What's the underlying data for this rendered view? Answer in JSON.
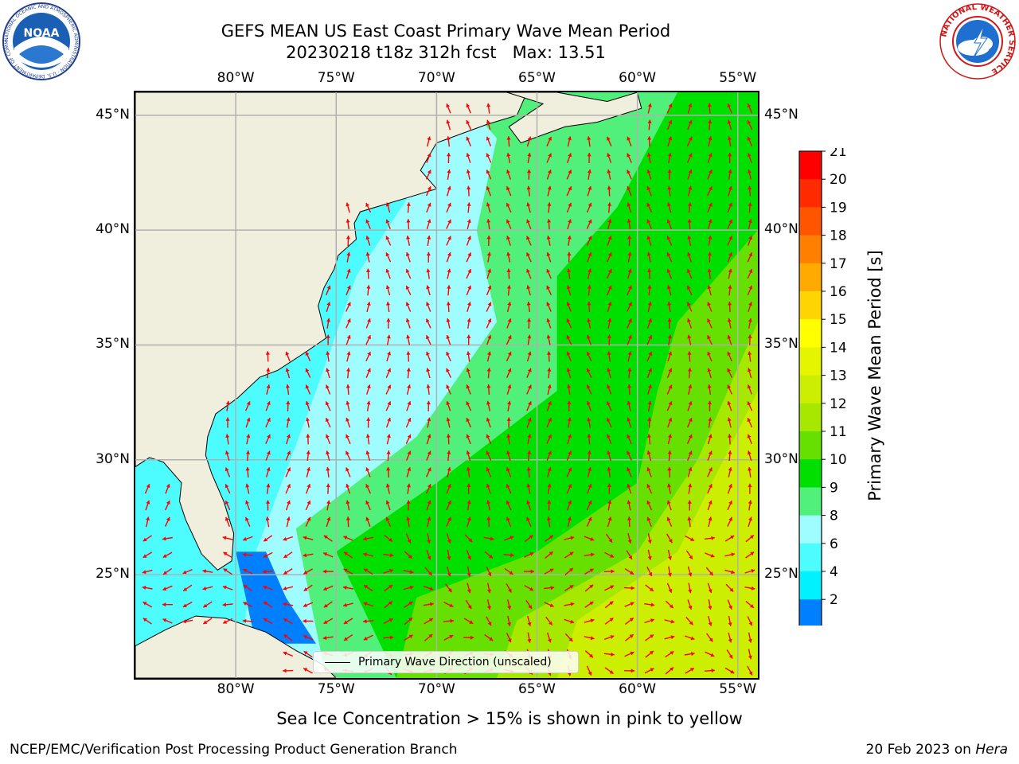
{
  "title": {
    "line1": "GEFS MEAN US East Coast Primary Wave Mean Period",
    "line2": "20230218 t18z 312h fcst   Max: 13.51"
  },
  "map": {
    "lon_range": [
      -85,
      -54
    ],
    "lat_range": [
      20.5,
      46
    ],
    "lon_ticks": [
      {
        "value": -80,
        "label": "80°W"
      },
      {
        "value": -75,
        "label": "75°W"
      },
      {
        "value": -70,
        "label": "70°W"
      },
      {
        "value": -65,
        "label": "65°W"
      },
      {
        "value": -60,
        "label": "60°W"
      },
      {
        "value": -55,
        "label": "55°W"
      }
    ],
    "lat_ticks": [
      {
        "value": 45,
        "label": "45°N"
      },
      {
        "value": 40,
        "label": "40°N"
      },
      {
        "value": 35,
        "label": "35°N"
      },
      {
        "value": 30,
        "label": "30°N"
      },
      {
        "value": 25,
        "label": "25°N"
      }
    ],
    "land_color": "#f0eedc",
    "gridline_color": "#b0b0b0",
    "arrow_color": "#ff0000",
    "legend_label": "Primary Wave Direction (unscaled)",
    "footnote": "Sea Ice Concentration > 15% is shown in pink to yellow"
  },
  "colorbar": {
    "label": "Primary Wave Mean Period [s]",
    "ticks": [
      "21",
      "20",
      "19",
      "18",
      "17",
      "16",
      "15",
      "14",
      "13",
      "12",
      "11",
      "10",
      "9",
      "8",
      "6",
      "4",
      "2"
    ],
    "colors": [
      "#ff0000",
      "#ff2a00",
      "#ff5500",
      "#ff8000",
      "#ffaa00",
      "#ffd500",
      "#ffff00",
      "#e5f500",
      "#ccee00",
      "#a6e800",
      "#66e000",
      "#00e000",
      "#50f07a",
      "#9ffcff",
      "#4dfcff",
      "#00f2ff",
      "#0080ff"
    ],
    "extend_color": "#0000ff"
  },
  "logos": {
    "noaa": "NOAA",
    "noaa_ring": "NATIONAL OCEANIC AND ATMOSPHERIC ADMINISTRATION · U.S. DEPARTMENT OF COMMERCE",
    "nws_ring": "NATIONAL WEATHER SERVICE"
  },
  "credit": "NCEP/EMC/Verification Post Processing Product Generation Branch",
  "date": {
    "text": "20 Feb 2023 on ",
    "host": "Hera"
  }
}
